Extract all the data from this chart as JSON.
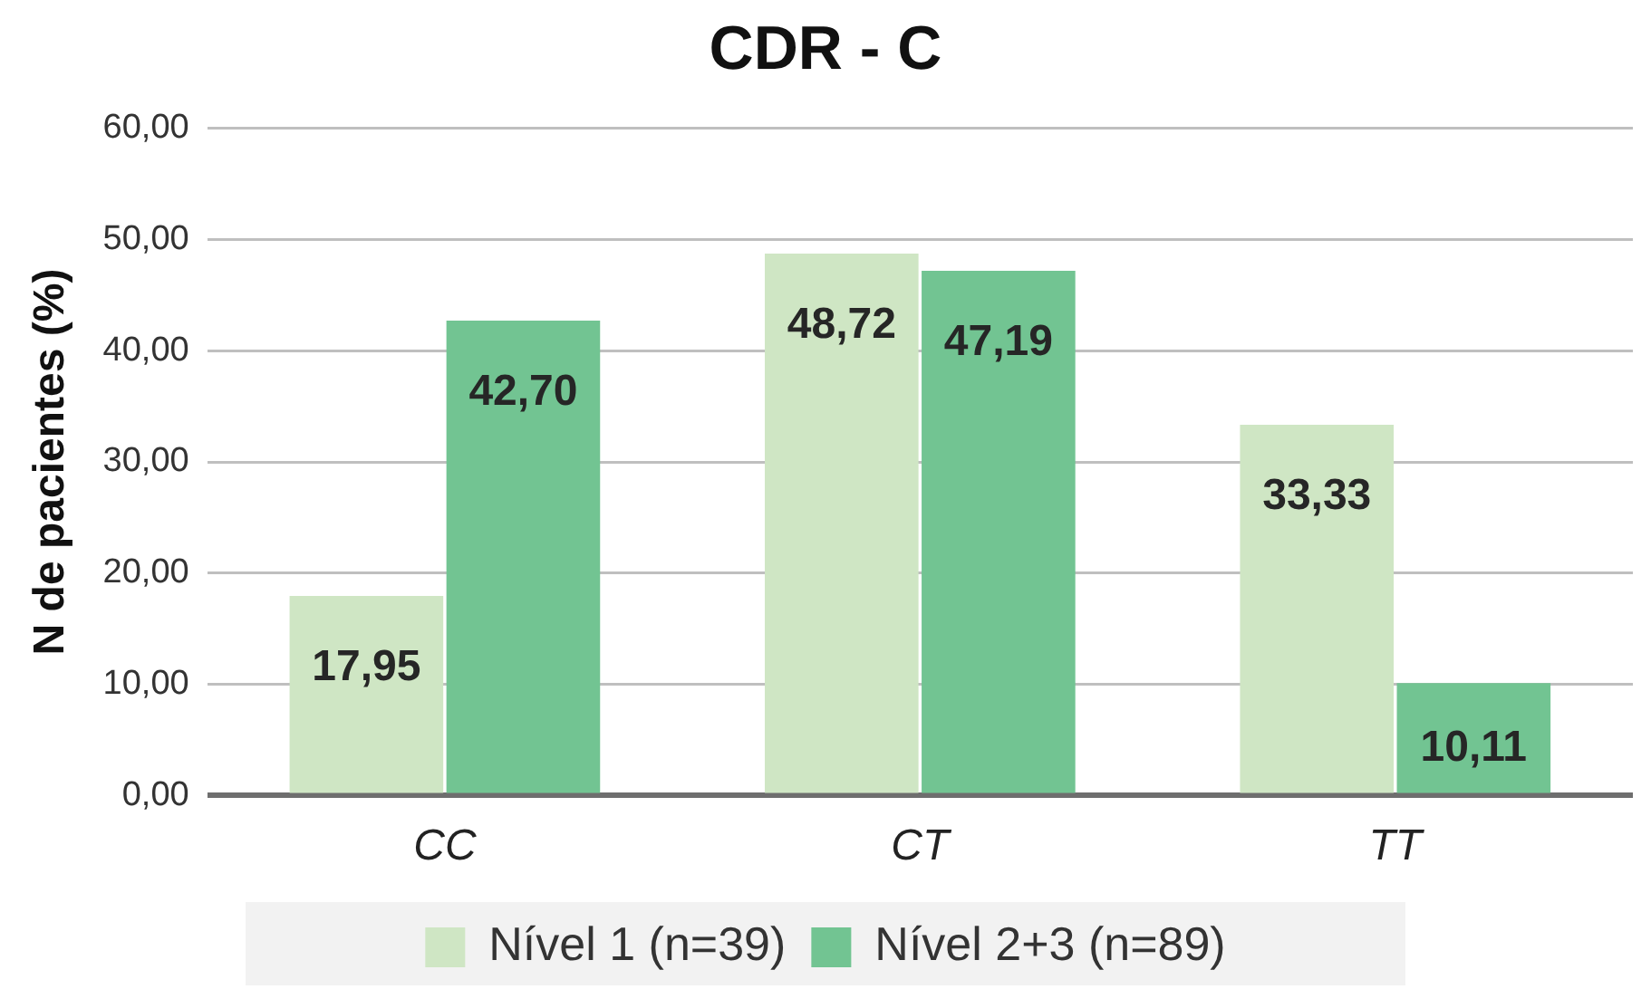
{
  "chart_data": {
    "type": "bar",
    "title": "CDR - C",
    "ylabel": "N de pacientes (%)",
    "categories": [
      "CC",
      "CT",
      "TT"
    ],
    "series": [
      {
        "name": "Nível 1 (n=39)",
        "color": "#cfe6c4",
        "values": [
          17.95,
          48.72,
          33.33
        ],
        "value_labels": [
          "17,95",
          "48,72",
          "33,33"
        ]
      },
      {
        "name": "Nível 2+3 (n=89)",
        "color": "#72c492",
        "values": [
          42.7,
          47.19,
          10.11
        ],
        "value_labels": [
          "42,70",
          "47,19",
          "10,11"
        ]
      }
    ],
    "ylim": [
      0,
      60
    ],
    "yticks": [
      {
        "value": 0,
        "label": "0,00"
      },
      {
        "value": 10,
        "label": "10,00"
      },
      {
        "value": 20,
        "label": "20,00"
      },
      {
        "value": 30,
        "label": "30,00"
      },
      {
        "value": 40,
        "label": "40,00"
      },
      {
        "value": 50,
        "label": "50,00"
      },
      {
        "value": 60,
        "label": "60,00"
      }
    ],
    "grid": "y",
    "legend": "bottom"
  }
}
